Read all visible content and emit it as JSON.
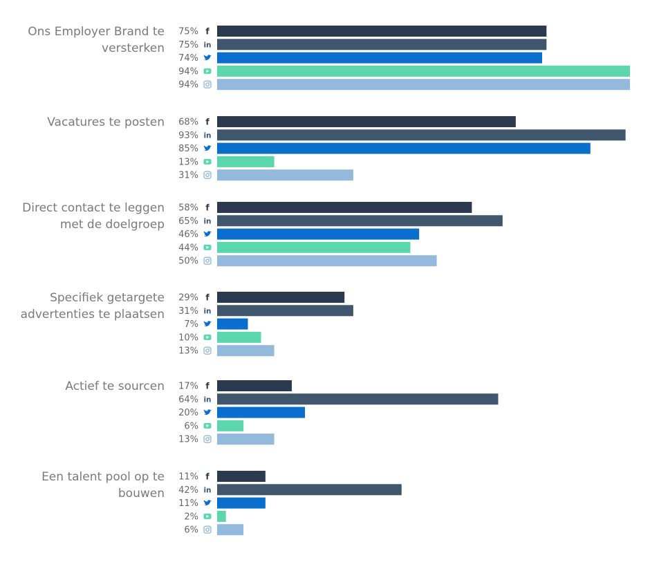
{
  "chart_data": {
    "type": "bar",
    "orientation": "horizontal",
    "categories": [
      [
        "Ons Employer Brand te",
        "versterken"
      ],
      [
        "Vacatures te posten"
      ],
      [
        "Direct contact te leggen",
        "met de doelgroep"
      ],
      [
        "Specifiek getargete",
        "advertenties te plaatsen"
      ],
      [
        "Actief te sourcen"
      ],
      [
        "Een talent pool op te",
        "bouwen"
      ]
    ],
    "series": [
      {
        "icon": "facebook-icon",
        "color": "#2b3a4f",
        "values": [
          75,
          68,
          58,
          29,
          17,
          11
        ]
      },
      {
        "icon": "linkedin-icon",
        "color": "#3f566c",
        "values": [
          75,
          93,
          65,
          31,
          64,
          42
        ]
      },
      {
        "icon": "twitter-icon",
        "color": "#0a6fcc",
        "values": [
          74,
          85,
          46,
          7,
          20,
          11
        ]
      },
      {
        "icon": "youtube-icon",
        "color": "#5cd6ad",
        "values": [
          94,
          13,
          44,
          10,
          6,
          2
        ]
      },
      {
        "icon": "instagram-icon",
        "color": "#93b9dc",
        "values": [
          94,
          31,
          50,
          13,
          13,
          6
        ]
      }
    ],
    "value_suffix": "%",
    "xlim": [
      0,
      94
    ],
    "grid": false,
    "legend": "none"
  }
}
